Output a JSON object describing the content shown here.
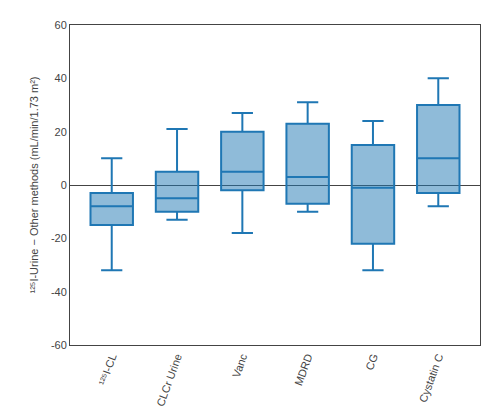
{
  "chart_data": {
    "type": "box",
    "categories": [
      "¹²⁵I-CL",
      "CLCr Urine",
      "Vanc",
      "MDRD",
      "CG",
      "Cystatin C"
    ],
    "p10": [
      -32,
      -13,
      -18,
      -10,
      -32,
      -8
    ],
    "q1": [
      -15,
      -10,
      -2,
      -7,
      -22,
      -3
    ],
    "median": [
      -8,
      -5,
      5,
      3,
      -1,
      10
    ],
    "q3": [
      -3,
      5,
      20,
      23,
      15,
      30
    ],
    "p90": [
      10,
      21,
      27,
      31,
      24,
      40
    ],
    "ylabel": "¹²⁵I-Urine − Other methods (mL/min/1.73 m²)",
    "ylim": [
      -60,
      60
    ],
    "yticks": [
      -60,
      -40,
      -20,
      0,
      20,
      40,
      60
    ],
    "grid": false
  }
}
